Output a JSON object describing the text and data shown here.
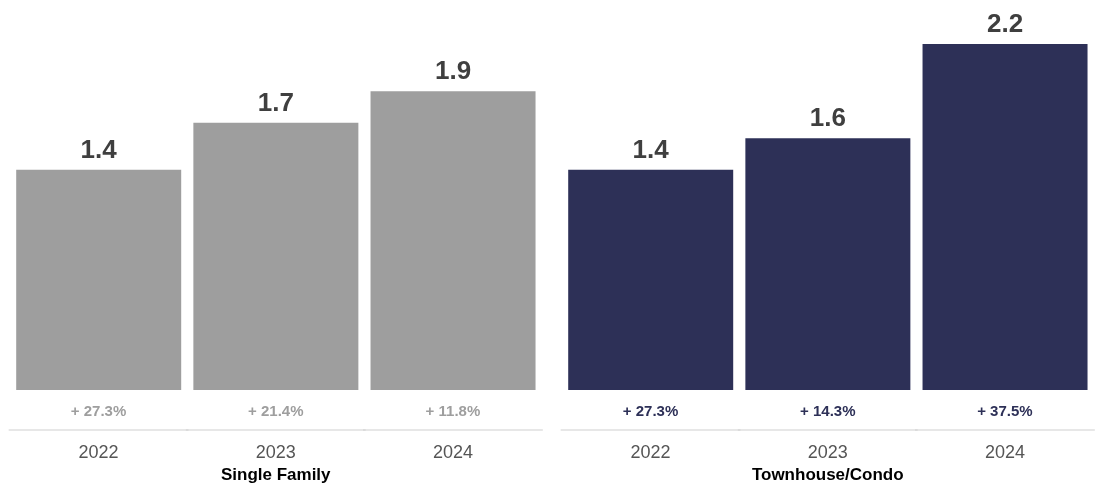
{
  "chart_data": [
    {
      "type": "bar",
      "xlabel": "Single Family",
      "categories": [
        "2022",
        "2023",
        "2024"
      ],
      "values": [
        1.4,
        1.7,
        1.9
      ],
      "color": "#9e9e9e",
      "data_labels": true,
      "grid": false,
      "legend": false,
      "annotations": [
        "+ 27.3%",
        "+ 21.4%",
        "+ 11.8%"
      ]
    },
    {
      "type": "bar",
      "xlabel": "Townhouse/Condo",
      "categories": [
        "2022",
        "2023",
        "2024"
      ],
      "values": [
        1.4,
        1.6,
        2.2
      ],
      "color": "#2d3057",
      "data_labels": true,
      "grid": false,
      "legend": false,
      "annotations": [
        "+ 27.3%",
        "+ 14.3%",
        "+ 37.5%"
      ]
    }
  ]
}
